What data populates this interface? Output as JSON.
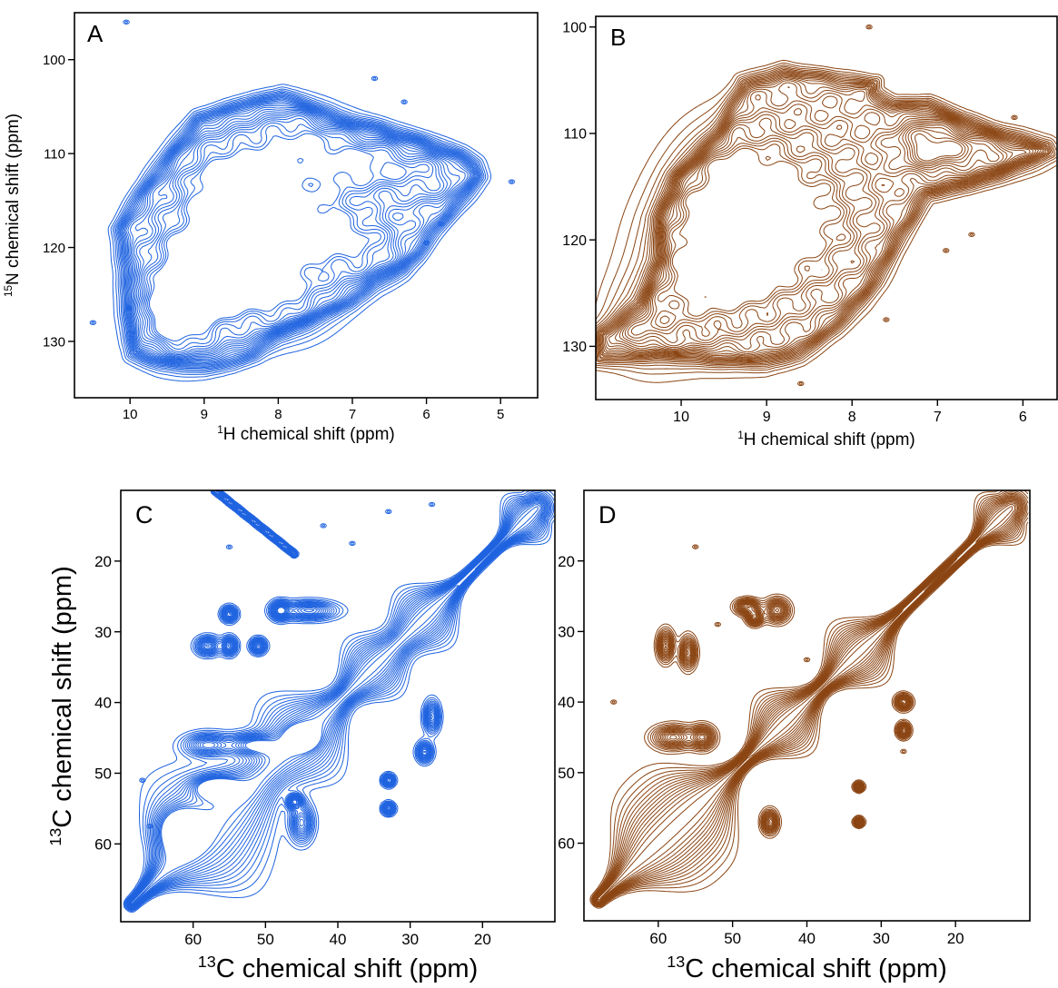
{
  "chart_data": [
    {
      "panel_label": "A",
      "type": "contour",
      "spectrum": "2D 1H-15N correlation",
      "xlabel_sup": "1",
      "xlabel_rest": "H chemical shift (ppm)",
      "ylabel_sup": "15",
      "ylabel_rest": "N chemical shift (ppm)",
      "xlim": [
        10.75,
        4.5
      ],
      "ylim": [
        136,
        95
      ],
      "x_ticks": [
        10,
        9,
        8,
        7,
        6,
        5
      ],
      "y_ticks": [
        100,
        110,
        120,
        130
      ],
      "contour_color": "#1f63e0",
      "envelope": [
        [
          10.0,
          131.5
        ],
        [
          9.6,
          132.5
        ],
        [
          9.0,
          133
        ],
        [
          8.6,
          132.5
        ],
        [
          8.3,
          131.5
        ],
        [
          8.0,
          129.5
        ],
        [
          7.7,
          128.5
        ],
        [
          7.3,
          127
        ],
        [
          7.0,
          126
        ],
        [
          6.7,
          124
        ],
        [
          6.3,
          122.5
        ],
        [
          6.1,
          121
        ],
        [
          5.9,
          119
        ],
        [
          5.7,
          117
        ],
        [
          5.5,
          115
        ],
        [
          5.25,
          112.5
        ],
        [
          5.3,
          111
        ],
        [
          5.5,
          110
        ],
        [
          6.0,
          108.5
        ],
        [
          6.6,
          107
        ],
        [
          7.2,
          106
        ],
        [
          7.6,
          104.5
        ],
        [
          7.95,
          103.5
        ],
        [
          8.5,
          104.5
        ],
        [
          9.1,
          106
        ],
        [
          9.5,
          110
        ],
        [
          9.9,
          114
        ],
        [
          10.2,
          118
        ],
        [
          10.1,
          123
        ],
        [
          10.05,
          128
        ]
      ],
      "peaks": [
        {
          "h": 9.1,
          "n": 122.5,
          "a": 1.0,
          "sx": 0.45,
          "sy": 4.5
        },
        {
          "h": 8.4,
          "n": 118.5,
          "a": 0.85,
          "sx": 0.45,
          "sy": 4.0
        },
        {
          "h": 7.5,
          "n": 117,
          "a": 0.7,
          "sx": 0.5,
          "sy": 4.5
        },
        {
          "h": 9.4,
          "n": 127.5,
          "a": 0.7,
          "sx": 0.35,
          "sy": 3.0
        },
        {
          "h": 8.7,
          "n": 112.5,
          "a": 0.7,
          "sx": 0.45,
          "sy": 3.0
        },
        {
          "h": 6.8,
          "n": 111,
          "a": 0.6,
          "sx": 0.45,
          "sy": 2.0
        },
        {
          "h": 7.8,
          "n": 108.5,
          "a": 0.6,
          "sx": 0.5,
          "sy": 2.5
        },
        {
          "h": 6.0,
          "n": 112.5,
          "a": 0.5,
          "sx": 0.4,
          "sy": 2.0
        },
        {
          "h": 8.0,
          "n": 125.5,
          "a": 0.6,
          "sx": 0.5,
          "sy": 3.0
        },
        {
          "h": 6.8,
          "n": 120,
          "a": 0.5,
          "sx": 0.35,
          "sy": 2.5
        }
      ],
      "isolated_peaks": [
        [
          10.05,
          96
        ],
        [
          10.5,
          128
        ],
        [
          6.7,
          102
        ],
        [
          6.3,
          104.5
        ],
        [
          4.85,
          113
        ],
        [
          5.8,
          117.5
        ],
        [
          6.0,
          119.5
        ]
      ]
    },
    {
      "panel_label": "B",
      "type": "contour",
      "spectrum": "2D 1H-15N correlation",
      "xlabel_sup": "1",
      "xlabel_rest": "H chemical shift (ppm)",
      "ylim": [
        135,
        99
      ],
      "xlim": [
        11.0,
        5.6
      ],
      "x_ticks": [
        10,
        9,
        8,
        7,
        6
      ],
      "y_ticks": [
        100,
        110,
        120,
        130
      ],
      "contour_color": "#8b4513",
      "envelope": [
        [
          11.0,
          131.5
        ],
        [
          10.3,
          131
        ],
        [
          9.7,
          131.5
        ],
        [
          9.0,
          131.8
        ],
        [
          8.6,
          131
        ],
        [
          8.2,
          128.5
        ],
        [
          7.9,
          126
        ],
        [
          7.7,
          124
        ],
        [
          7.5,
          121
        ],
        [
          7.3,
          118.5
        ],
        [
          7.1,
          116
        ],
        [
          6.8,
          115.5
        ],
        [
          6.4,
          114.5
        ],
        [
          6.0,
          113
        ],
        [
          5.65,
          112
        ],
        [
          5.7,
          111
        ],
        [
          6.2,
          110
        ],
        [
          6.7,
          108.5
        ],
        [
          7.1,
          107
        ],
        [
          7.5,
          107
        ],
        [
          7.7,
          106
        ],
        [
          7.7,
          105
        ],
        [
          8.2,
          104.5
        ],
        [
          8.8,
          103.8
        ],
        [
          9.3,
          105
        ],
        [
          9.6,
          110
        ],
        [
          10.1,
          114
        ],
        [
          10.3,
          118
        ],
        [
          10.3,
          122
        ],
        [
          10.5,
          126
        ],
        [
          11.0,
          128.5
        ]
      ],
      "peaks": [
        {
          "h": 9.5,
          "n": 122,
          "a": 1.0,
          "sx": 0.6,
          "sy": 5.0
        },
        {
          "h": 9.3,
          "n": 114,
          "a": 0.6,
          "sx": 0.5,
          "sy": 4.0
        },
        {
          "h": 8.4,
          "n": 118,
          "a": 0.6,
          "sx": 0.5,
          "sy": 5.0
        },
        {
          "h": 7.1,
          "n": 111,
          "a": 0.7,
          "sx": 0.3,
          "sy": 1.8
        },
        {
          "h": 10.4,
          "n": 128,
          "a": 0.4,
          "sx": 0.35,
          "sy": 3.0
        },
        {
          "h": 6.4,
          "n": 112,
          "a": 0.45,
          "sx": 0.45,
          "sy": 1.5
        }
      ],
      "isolated_peaks": [
        [
          7.8,
          100
        ],
        [
          6.1,
          108.5
        ],
        [
          8.6,
          133.5
        ],
        [
          6.6,
          119.5
        ],
        [
          6.9,
          121
        ],
        [
          7.6,
          127.5
        ]
      ]
    },
    {
      "panel_label": "C",
      "type": "contour",
      "spectrum": "2D 13C-13C correlation",
      "xlabel_sup": "13",
      "xlabel_rest": "C chemical shift (ppm)",
      "ylabel_sup": "13",
      "ylabel_rest": "C chemical shift (ppm)",
      "xlim": [
        70,
        10
      ],
      "ylim": [
        71,
        10
      ],
      "x_ticks": [
        60,
        50,
        40,
        30,
        20
      ],
      "y_ticks": [
        20,
        30,
        40,
        50,
        60
      ],
      "contour_color": "#1f63e0",
      "diagonal": [
        68.5,
        12.5
      ],
      "diagonal_blobs": [
        [
          60,
          4,
          3
        ],
        [
          55,
          5,
          3
        ],
        [
          45,
          4,
          3
        ],
        [
          35,
          3,
          2
        ],
        [
          28,
          3,
          2
        ],
        [
          14,
          2,
          1.5
        ]
      ],
      "cross_peaks": [
        {
          "x": 44,
          "y": 27,
          "w": 3.5,
          "h": 1.2
        },
        {
          "x": 48,
          "y": 27,
          "w": 1.2,
          "h": 1.2
        },
        {
          "x": 55,
          "y": 27.5,
          "w": 1,
          "h": 1
        },
        {
          "x": 55,
          "y": 32,
          "w": 1,
          "h": 1.2
        },
        {
          "x": 58,
          "y": 32,
          "w": 1.5,
          "h": 1.2
        },
        {
          "x": 51,
          "y": 32,
          "w": 1,
          "h": 1
        },
        {
          "x": 58,
          "y": 46,
          "w": 3,
          "h": 1.5
        },
        {
          "x": 52,
          "y": 46,
          "w": 3,
          "h": 1.5
        },
        {
          "x": 45,
          "y": 45,
          "w": 2,
          "h": 1.5
        },
        {
          "x": 57,
          "y": 52,
          "w": 3,
          "h": 1.5
        },
        {
          "x": 62,
          "y": 58,
          "w": 3,
          "h": 3
        },
        {
          "x": 45,
          "y": 57,
          "w": 1.5,
          "h": 2.5
        },
        {
          "x": 27,
          "y": 42,
          "w": 1,
          "h": 2
        },
        {
          "x": 28,
          "y": 47,
          "w": 1,
          "h": 1.3
        },
        {
          "x": 33,
          "y": 51,
          "w": 0.8,
          "h": 0.8
        },
        {
          "x": 33,
          "y": 55,
          "w": 0.8,
          "h": 0.8
        },
        {
          "x": 46,
          "y": 54,
          "w": 1,
          "h": 1
        }
      ],
      "side_ridges": [
        [
          [
            57,
            10
          ],
          [
            46,
            19
          ]
        ]
      ],
      "isolated_peaks": [
        [
          55,
          18
        ],
        [
          67,
          51
        ],
        [
          66,
          57.5
        ],
        [
          38,
          17.5
        ],
        [
          33,
          13
        ],
        [
          27,
          12
        ],
        [
          42,
          15
        ]
      ]
    },
    {
      "panel_label": "D",
      "type": "contour",
      "spectrum": "2D 13C-13C correlation",
      "xlabel_sup": "13",
      "xlabel_rest": "C chemical shift (ppm)",
      "xlim": [
        70,
        10
      ],
      "ylim": [
        71,
        10
      ],
      "x_ticks": [
        60,
        50,
        40,
        30,
        20
      ],
      "y_ticks": [
        20,
        30,
        40,
        50,
        60
      ],
      "contour_color": "#8b4513",
      "diagonal": [
        68,
        12.5
      ],
      "diagonal_blobs": [
        [
          60,
          4,
          3
        ],
        [
          55,
          3.5,
          2.5
        ],
        [
          43,
          3,
          2
        ],
        [
          33,
          3,
          2
        ],
        [
          14,
          2,
          1.5
        ]
      ],
      "cross_peaks": [
        {
          "x": 44,
          "y": 27,
          "w": 1.5,
          "h": 1.5
        },
        {
          "x": 47,
          "y": 28,
          "w": 1,
          "h": 1
        },
        {
          "x": 48,
          "y": 26.5,
          "w": 1.5,
          "h": 1
        },
        {
          "x": 59,
          "y": 32,
          "w": 1,
          "h": 2
        },
        {
          "x": 56,
          "y": 33,
          "w": 1,
          "h": 2
        },
        {
          "x": 58,
          "y": 45,
          "w": 2.5,
          "h": 1.5
        },
        {
          "x": 54,
          "y": 45,
          "w": 1.5,
          "h": 1.5
        },
        {
          "x": 45,
          "y": 57,
          "w": 1,
          "h": 1.5
        },
        {
          "x": 27,
          "y": 40,
          "w": 1,
          "h": 1
        },
        {
          "x": 27,
          "y": 44,
          "w": 0.8,
          "h": 1
        },
        {
          "x": 33,
          "y": 52,
          "w": 0.6,
          "h": 0.6
        },
        {
          "x": 33,
          "y": 57,
          "w": 0.6,
          "h": 0.6
        }
      ],
      "side_ridges": [],
      "isolated_peaks": [
        [
          55,
          18
        ],
        [
          40,
          34
        ],
        [
          52,
          29
        ],
        [
          66,
          40
        ],
        [
          27,
          47
        ]
      ]
    }
  ]
}
